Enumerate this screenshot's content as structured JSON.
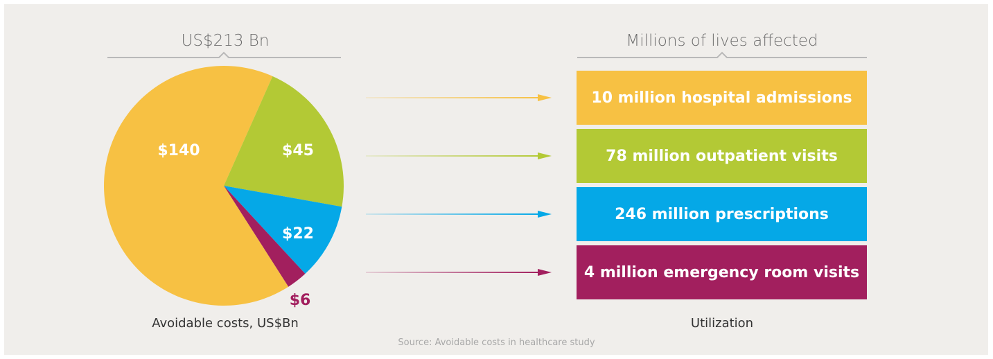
{
  "left_header": "US$213 Bn",
  "right_header": "Millions of lives affected",
  "left_caption": "Avoidable costs, US$Bn",
  "right_caption": "Utilization",
  "source": "Source: Avoidable costs in healthcare study",
  "colors": {
    "yellow": "#f7c143",
    "green": "#b3c935",
    "blue": "#05a8e7",
    "purple": "#a21f5e",
    "background": "#f0eeeb"
  },
  "chart_data": {
    "type": "pie",
    "title": "US$213 Bn",
    "categories": [
      "$140",
      "$45",
      "$22",
      "$6"
    ],
    "values": [
      140,
      45,
      22,
      6
    ],
    "colors": [
      "#f7c143",
      "#b3c935",
      "#05a8e7",
      "#a21f5e"
    ]
  },
  "utilization": [
    {
      "label": "10 million hospital admissions",
      "color": "#f7c143"
    },
    {
      "label": "78 million outpatient visits",
      "color": "#b3c935"
    },
    {
      "label": "246 million prescriptions",
      "color": "#05a8e7"
    },
    {
      "label": "4 million emergency room visits",
      "color": "#a21f5e"
    }
  ]
}
